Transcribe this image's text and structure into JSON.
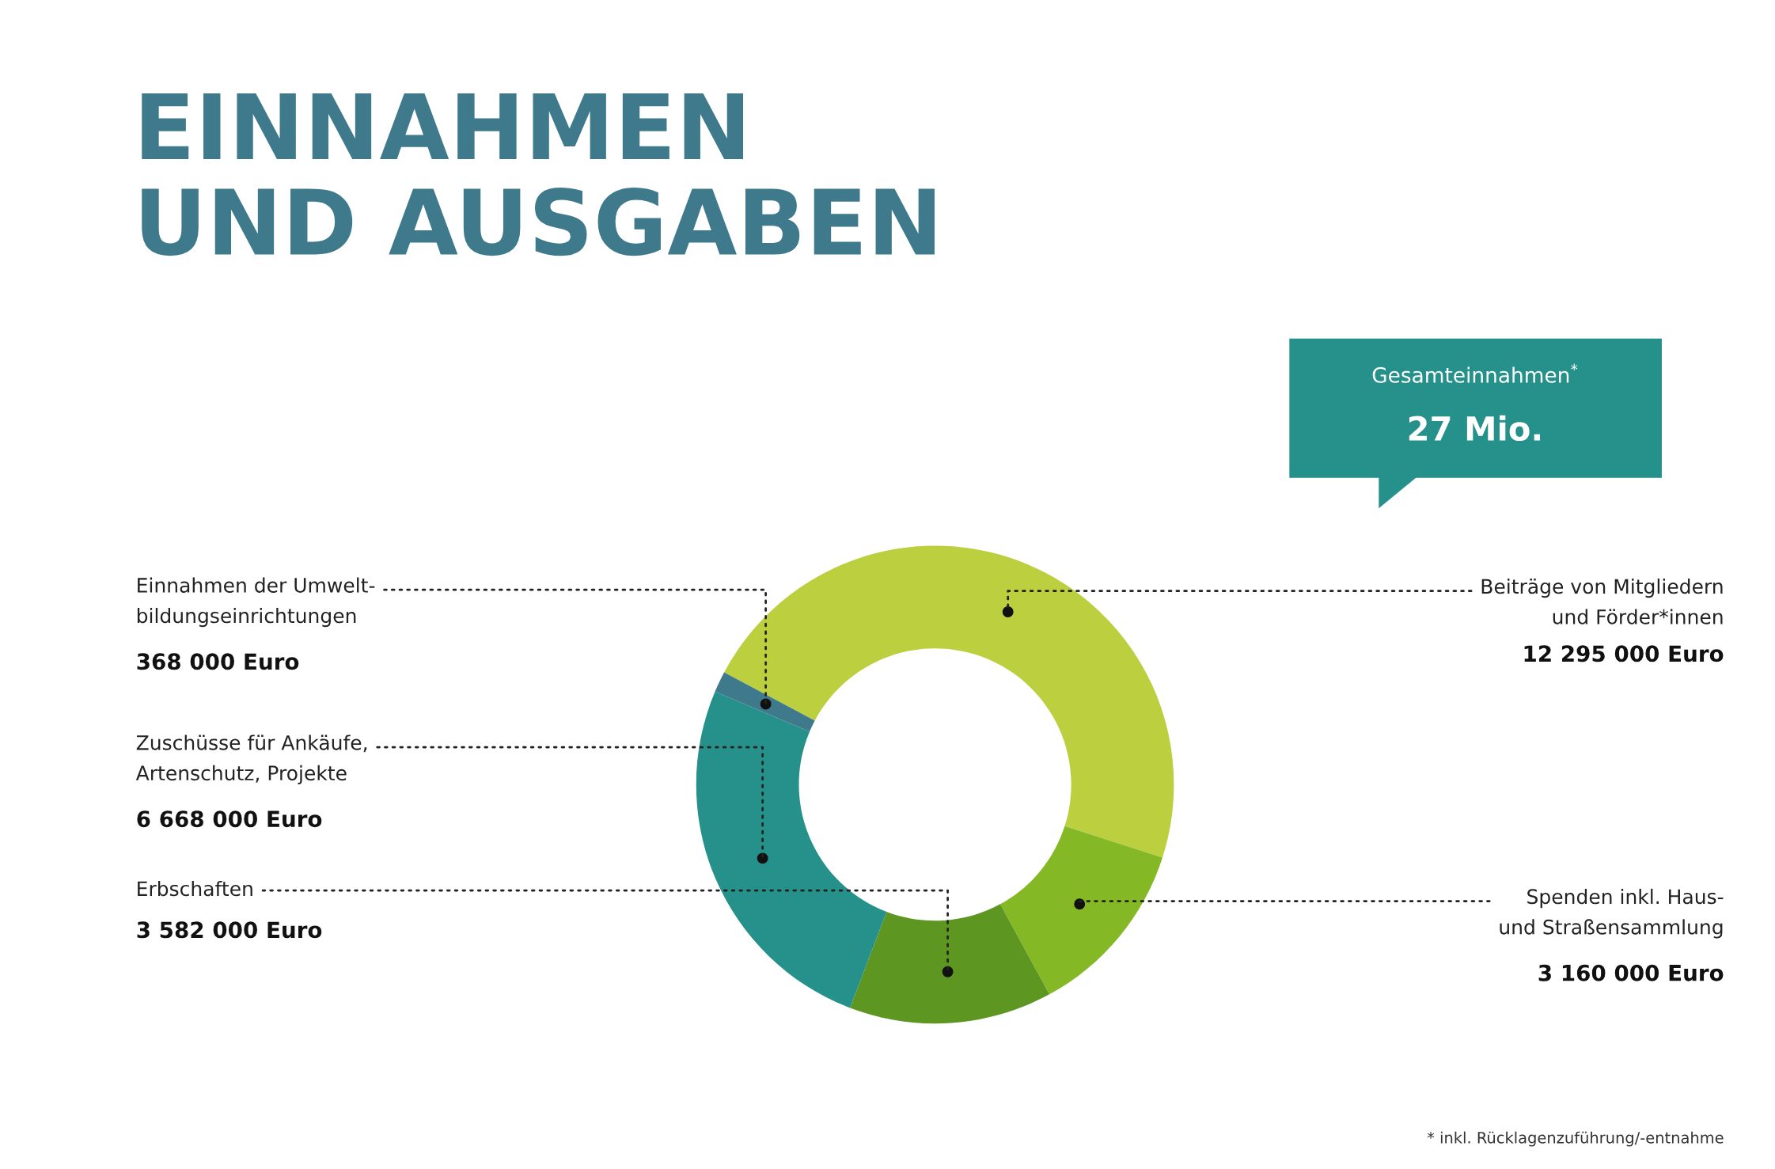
{
  "chart_data": {
    "type": "donut",
    "title": "EINNAHMEN\nUND AUSGABEN",
    "categories": [
      "Beiträge von Mitgliedern\nund Förder*innen",
      "Spenden inkl. Haus-\nund Straßensammlung",
      "Erbschaften",
      "Zuschüsse für Ankäufe,\nArtenschutz, Projekte",
      "Einnahmen der Umwelt-\nbildungseinrichtungen"
    ],
    "values": [
      12295000,
      3160000,
      3582000,
      6668000,
      368000
    ],
    "colors": [
      "#bccf3e",
      "#84b925",
      "#5e9622",
      "#26918b",
      "#3e7a8c"
    ],
    "value_labels": [
      "12 295 000 Euro",
      "3 160 000 Euro",
      "3 582 000 Euro",
      "6 668 000 Euro",
      "368 000 Euro"
    ],
    "annotations": [
      "Gesamteinnahmen$^{*}$",
      "27 Mio.",
      "* inkl. Rücklagenzuführung/-entnahme"
    ]
  }
}
